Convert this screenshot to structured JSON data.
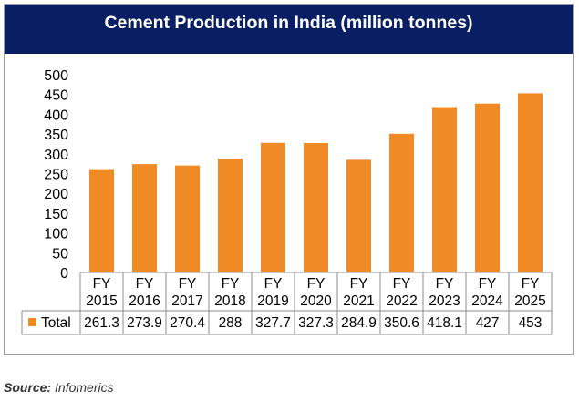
{
  "chart_data": {
    "type": "bar",
    "title": "Cement Production in India (million tonnes)",
    "categories": [
      [
        "FY",
        "2015"
      ],
      [
        "FY",
        "2016"
      ],
      [
        "FY",
        "2017"
      ],
      [
        "FY",
        "2018"
      ],
      [
        "FY",
        "2019"
      ],
      [
        "FY",
        "2020"
      ],
      [
        "FY",
        "2021"
      ],
      [
        "FY",
        "2022"
      ],
      [
        "FY",
        "2023"
      ],
      [
        "FY",
        "2024"
      ],
      [
        "FY",
        "2025"
      ]
    ],
    "series": [
      {
        "name": "Total",
        "values": [
          261.3,
          273.9,
          270.4,
          288,
          327.7,
          327.3,
          284.9,
          350.6,
          418.1,
          427,
          453
        ],
        "labels": [
          "261.3",
          "273.9",
          "270.4",
          "288",
          "327.7",
          "327.3",
          "284.9",
          "350.6",
          "418.1",
          "427",
          "453"
        ]
      }
    ],
    "yticks": [
      0,
      50,
      100,
      150,
      200,
      250,
      300,
      350,
      400,
      450,
      500
    ],
    "ylim": [
      0,
      500
    ],
    "xlabel": "",
    "ylabel": "",
    "grid": false,
    "legend": "in-data-table",
    "bar_color": "#f08a24"
  },
  "source": {
    "label": "Source:",
    "text": "Infomerics"
  }
}
